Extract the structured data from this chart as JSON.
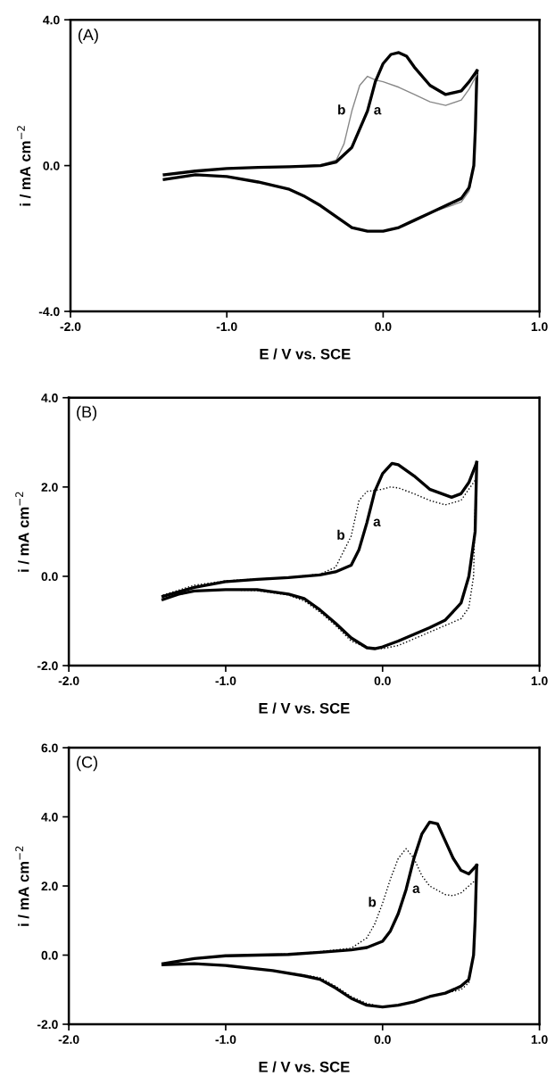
{
  "chart_data": [
    {
      "type": "line",
      "xlabel": "E / V vs. SCE",
      "ylabel": "i / mA cm$^{−2}$",
      "xlim": [
        -2.0,
        1.0
      ],
      "ylim": [
        -4.0,
        4.0
      ],
      "xticks": [
        {
          "value": -2,
          "label": "-2.0"
        },
        {
          "value": -1,
          "label": "-1.0"
        },
        {
          "value": 0,
          "label": "0.0"
        },
        {
          "value": 1,
          "label": "1.0"
        }
      ],
      "yticks": [
        {
          "value": -4,
          "label": "-4.0"
        },
        {
          "value": 0,
          "label": "0.0"
        },
        {
          "value": 4,
          "label": "4.0"
        }
      ],
      "grid": false,
      "legend": false,
      "annotations": [
        "(A)"
      ],
      "series": [
        {
          "name": "a",
          "color": "#000000",
          "line_style": "solid",
          "x": [
            -1.4,
            -1.2,
            -1.0,
            -0.8,
            -0.6,
            -0.4,
            -0.3,
            -0.2,
            -0.1,
            -0.05,
            0.0,
            0.05,
            0.1,
            0.15,
            0.2,
            0.3,
            0.4,
            0.5,
            0.55,
            0.6
          ],
          "values": [
            -0.25,
            -0.15,
            -0.08,
            -0.05,
            -0.03,
            0.0,
            0.1,
            0.5,
            1.5,
            2.3,
            2.8,
            3.05,
            3.1,
            3.0,
            2.7,
            2.2,
            1.95,
            2.05,
            2.3,
            2.6
          ]
        },
        {
          "name": "b",
          "color": "#888888",
          "line_style": "solid",
          "x": [
            -1.4,
            -1.2,
            -1.0,
            -0.8,
            -0.6,
            -0.4,
            -0.3,
            -0.25,
            -0.2,
            -0.15,
            -0.1,
            -0.05,
            0.0,
            0.1,
            0.2,
            0.3,
            0.4,
            0.5,
            0.55,
            0.6
          ],
          "values": [
            -0.25,
            -0.15,
            -0.08,
            -0.05,
            -0.03,
            0.02,
            0.15,
            0.6,
            1.5,
            2.2,
            2.45,
            2.35,
            2.3,
            2.15,
            1.95,
            1.75,
            1.65,
            1.8,
            2.1,
            2.5
          ]
        },
        {
          "color": "#000000",
          "line_style": "solid",
          "x": [
            -1.4,
            -1.2,
            -1.0,
            -0.8,
            -0.6,
            -0.5,
            -0.4,
            -0.3,
            -0.2,
            -0.1,
            0.0,
            0.1,
            0.2,
            0.3,
            0.4,
            0.5,
            0.55,
            0.58,
            0.59,
            0.6
          ],
          "values": [
            -0.38,
            -0.25,
            -0.3,
            -0.45,
            -0.65,
            -0.85,
            -1.1,
            -1.4,
            -1.7,
            -1.8,
            -1.8,
            -1.7,
            -1.5,
            -1.3,
            -1.1,
            -0.9,
            -0.6,
            0.0,
            1.0,
            2.6
          ]
        },
        {
          "color": "#888888",
          "line_style": "solid",
          "x": [
            -1.4,
            -1.2,
            -1.0,
            -0.8,
            -0.6,
            -0.5,
            -0.4,
            -0.3,
            -0.2,
            -0.1,
            0.0,
            0.1,
            0.2,
            0.3,
            0.4,
            0.5,
            0.55,
            0.58,
            0.59,
            0.6
          ],
          "values": [
            -0.38,
            -0.25,
            -0.3,
            -0.45,
            -0.65,
            -0.85,
            -1.1,
            -1.4,
            -1.7,
            -1.8,
            -1.8,
            -1.7,
            -1.5,
            -1.3,
            -1.15,
            -1.0,
            -0.7,
            0.0,
            1.0,
            2.5
          ]
        }
      ]
    },
    {
      "type": "line",
      "xlabel": "E / V vs. SCE",
      "ylabel": "i / mA cm$^{−2}$",
      "xlim": [
        -2.0,
        1.0
      ],
      "ylim": [
        -2.0,
        4.0
      ],
      "xticks": [
        {
          "value": -2,
          "label": "-2.0"
        },
        {
          "value": -1,
          "label": "-1.0"
        },
        {
          "value": 0,
          "label": "0.0"
        },
        {
          "value": 1,
          "label": "1.0"
        }
      ],
      "yticks": [
        {
          "value": -2,
          "label": "-2.0"
        },
        {
          "value": 0,
          "label": "0.0"
        },
        {
          "value": 2,
          "label": "2.0"
        },
        {
          "value": 4,
          "label": "4.0"
        }
      ],
      "grid": false,
      "legend": false,
      "annotations": [
        "(B)"
      ],
      "series": [
        {
          "name": "a",
          "color": "#000000",
          "line_style": "solid",
          "x": [
            -1.4,
            -1.2,
            -1.0,
            -0.8,
            -0.6,
            -0.4,
            -0.3,
            -0.2,
            -0.15,
            -0.1,
            -0.05,
            0.0,
            0.06,
            0.1,
            0.2,
            0.3,
            0.44,
            0.5,
            0.55,
            0.6
          ],
          "values": [
            -0.45,
            -0.25,
            -0.12,
            -0.07,
            -0.03,
            0.03,
            0.1,
            0.25,
            0.6,
            1.2,
            1.9,
            2.3,
            2.53,
            2.5,
            2.25,
            1.95,
            1.77,
            1.85,
            2.1,
            2.55
          ]
        },
        {
          "name": "b",
          "color": "#000000",
          "line_style": "dotted",
          "x": [
            -1.4,
            -1.2,
            -1.0,
            -0.8,
            -0.6,
            -0.4,
            -0.3,
            -0.2,
            -0.15,
            -0.1,
            0.0,
            0.05,
            0.1,
            0.2,
            0.3,
            0.4,
            0.5,
            0.6
          ],
          "values": [
            -0.42,
            -0.2,
            -0.1,
            -0.06,
            -0.03,
            0.05,
            0.2,
            0.9,
            1.7,
            1.9,
            1.95,
            2.0,
            1.98,
            1.85,
            1.7,
            1.6,
            1.7,
            2.2
          ]
        },
        {
          "color": "#000000",
          "line_style": "solid",
          "x": [
            -1.4,
            -1.3,
            -1.2,
            -1.0,
            -0.8,
            -0.6,
            -0.5,
            -0.4,
            -0.3,
            -0.2,
            -0.1,
            -0.05,
            0.0,
            0.1,
            0.2,
            0.3,
            0.4,
            0.5,
            0.55,
            0.59,
            0.6
          ],
          "values": [
            -0.52,
            -0.4,
            -0.33,
            -0.3,
            -0.3,
            -0.4,
            -0.5,
            -0.75,
            -1.05,
            -1.38,
            -1.6,
            -1.62,
            -1.58,
            -1.45,
            -1.3,
            -1.15,
            -0.98,
            -0.6,
            0.0,
            1.0,
            2.55
          ]
        },
        {
          "color": "#000000",
          "line_style": "dotted",
          "x": [
            -1.4,
            -1.2,
            -1.0,
            -0.8,
            -0.6,
            -0.5,
            -0.4,
            -0.3,
            -0.2,
            -0.1,
            0.0,
            0.1,
            0.2,
            0.3,
            0.4,
            0.5,
            0.55,
            0.58,
            0.59,
            0.6
          ],
          "values": [
            -0.5,
            -0.33,
            -0.3,
            -0.32,
            -0.42,
            -0.55,
            -0.8,
            -1.1,
            -1.45,
            -1.6,
            -1.62,
            -1.55,
            -1.4,
            -1.25,
            -1.1,
            -0.95,
            -0.7,
            0.0,
            1.5,
            2.2
          ]
        }
      ]
    },
    {
      "type": "line",
      "xlabel": "E / V vs. SCE",
      "ylabel": "i / mA cm$^{−2}$",
      "xlim": [
        -2.0,
        1.0
      ],
      "ylim": [
        -2.0,
        6.0
      ],
      "xticks": [
        {
          "value": -2,
          "label": "-2.0"
        },
        {
          "value": -1,
          "label": "-1.0"
        },
        {
          "value": 0,
          "label": "0.0"
        },
        {
          "value": 1,
          "label": "1.0"
        }
      ],
      "yticks": [
        {
          "value": -2,
          "label": "-2.0"
        },
        {
          "value": 0,
          "label": "0.0"
        },
        {
          "value": 2,
          "label": "2.0"
        },
        {
          "value": 4,
          "label": "4.0"
        },
        {
          "value": 6,
          "label": "6.0"
        }
      ],
      "grid": false,
      "legend": false,
      "annotations": [
        "(C)"
      ],
      "series": [
        {
          "name": "a",
          "color": "#000000",
          "line_style": "solid",
          "x": [
            -1.4,
            -1.2,
            -1.0,
            -0.6,
            -0.4,
            -0.2,
            -0.1,
            0.0,
            0.05,
            0.1,
            0.15,
            0.2,
            0.25,
            0.3,
            0.35,
            0.4,
            0.45,
            0.5,
            0.55,
            0.6
          ],
          "values": [
            -0.25,
            -0.1,
            -0.02,
            0.02,
            0.08,
            0.15,
            0.22,
            0.4,
            0.7,
            1.2,
            1.9,
            2.8,
            3.5,
            3.85,
            3.8,
            3.3,
            2.8,
            2.45,
            2.35,
            2.6
          ]
        },
        {
          "name": "b",
          "color": "#000000",
          "line_style": "dotted",
          "x": [
            -1.4,
            -1.2,
            -1.0,
            -0.6,
            -0.4,
            -0.2,
            -0.1,
            -0.05,
            0.0,
            0.05,
            0.1,
            0.15,
            0.2,
            0.25,
            0.3,
            0.4,
            0.45,
            0.5,
            0.6
          ],
          "values": [
            -0.25,
            -0.1,
            -0.02,
            0.03,
            0.1,
            0.2,
            0.5,
            0.9,
            1.5,
            2.2,
            2.8,
            3.08,
            2.8,
            2.3,
            2.0,
            1.75,
            1.72,
            1.8,
            2.2
          ]
        },
        {
          "color": "#000000",
          "line_style": "solid",
          "x": [
            -1.4,
            -1.2,
            -1.0,
            -0.7,
            -0.5,
            -0.4,
            -0.3,
            -0.2,
            -0.1,
            0.0,
            0.1,
            0.2,
            0.3,
            0.4,
            0.5,
            0.55,
            0.58,
            0.59,
            0.6
          ],
          "values": [
            -0.28,
            -0.25,
            -0.3,
            -0.45,
            -0.6,
            -0.7,
            -0.95,
            -1.25,
            -1.45,
            -1.5,
            -1.45,
            -1.35,
            -1.2,
            -1.1,
            -0.9,
            -0.7,
            0.0,
            1.0,
            2.6
          ]
        },
        {
          "color": "#000000",
          "line_style": "dotted",
          "x": [
            -1.4,
            -1.2,
            -1.0,
            -0.7,
            -0.5,
            -0.4,
            -0.3,
            -0.2,
            -0.1,
            0.0,
            0.1,
            0.2,
            0.3,
            0.4,
            0.5,
            0.55,
            0.58,
            0.59,
            0.6
          ],
          "values": [
            -0.28,
            -0.25,
            -0.3,
            -0.45,
            -0.58,
            -0.65,
            -0.9,
            -1.2,
            -1.4,
            -1.5,
            -1.45,
            -1.35,
            -1.2,
            -1.1,
            -1.0,
            -0.8,
            0.0,
            1.2,
            2.2
          ]
        }
      ]
    }
  ]
}
